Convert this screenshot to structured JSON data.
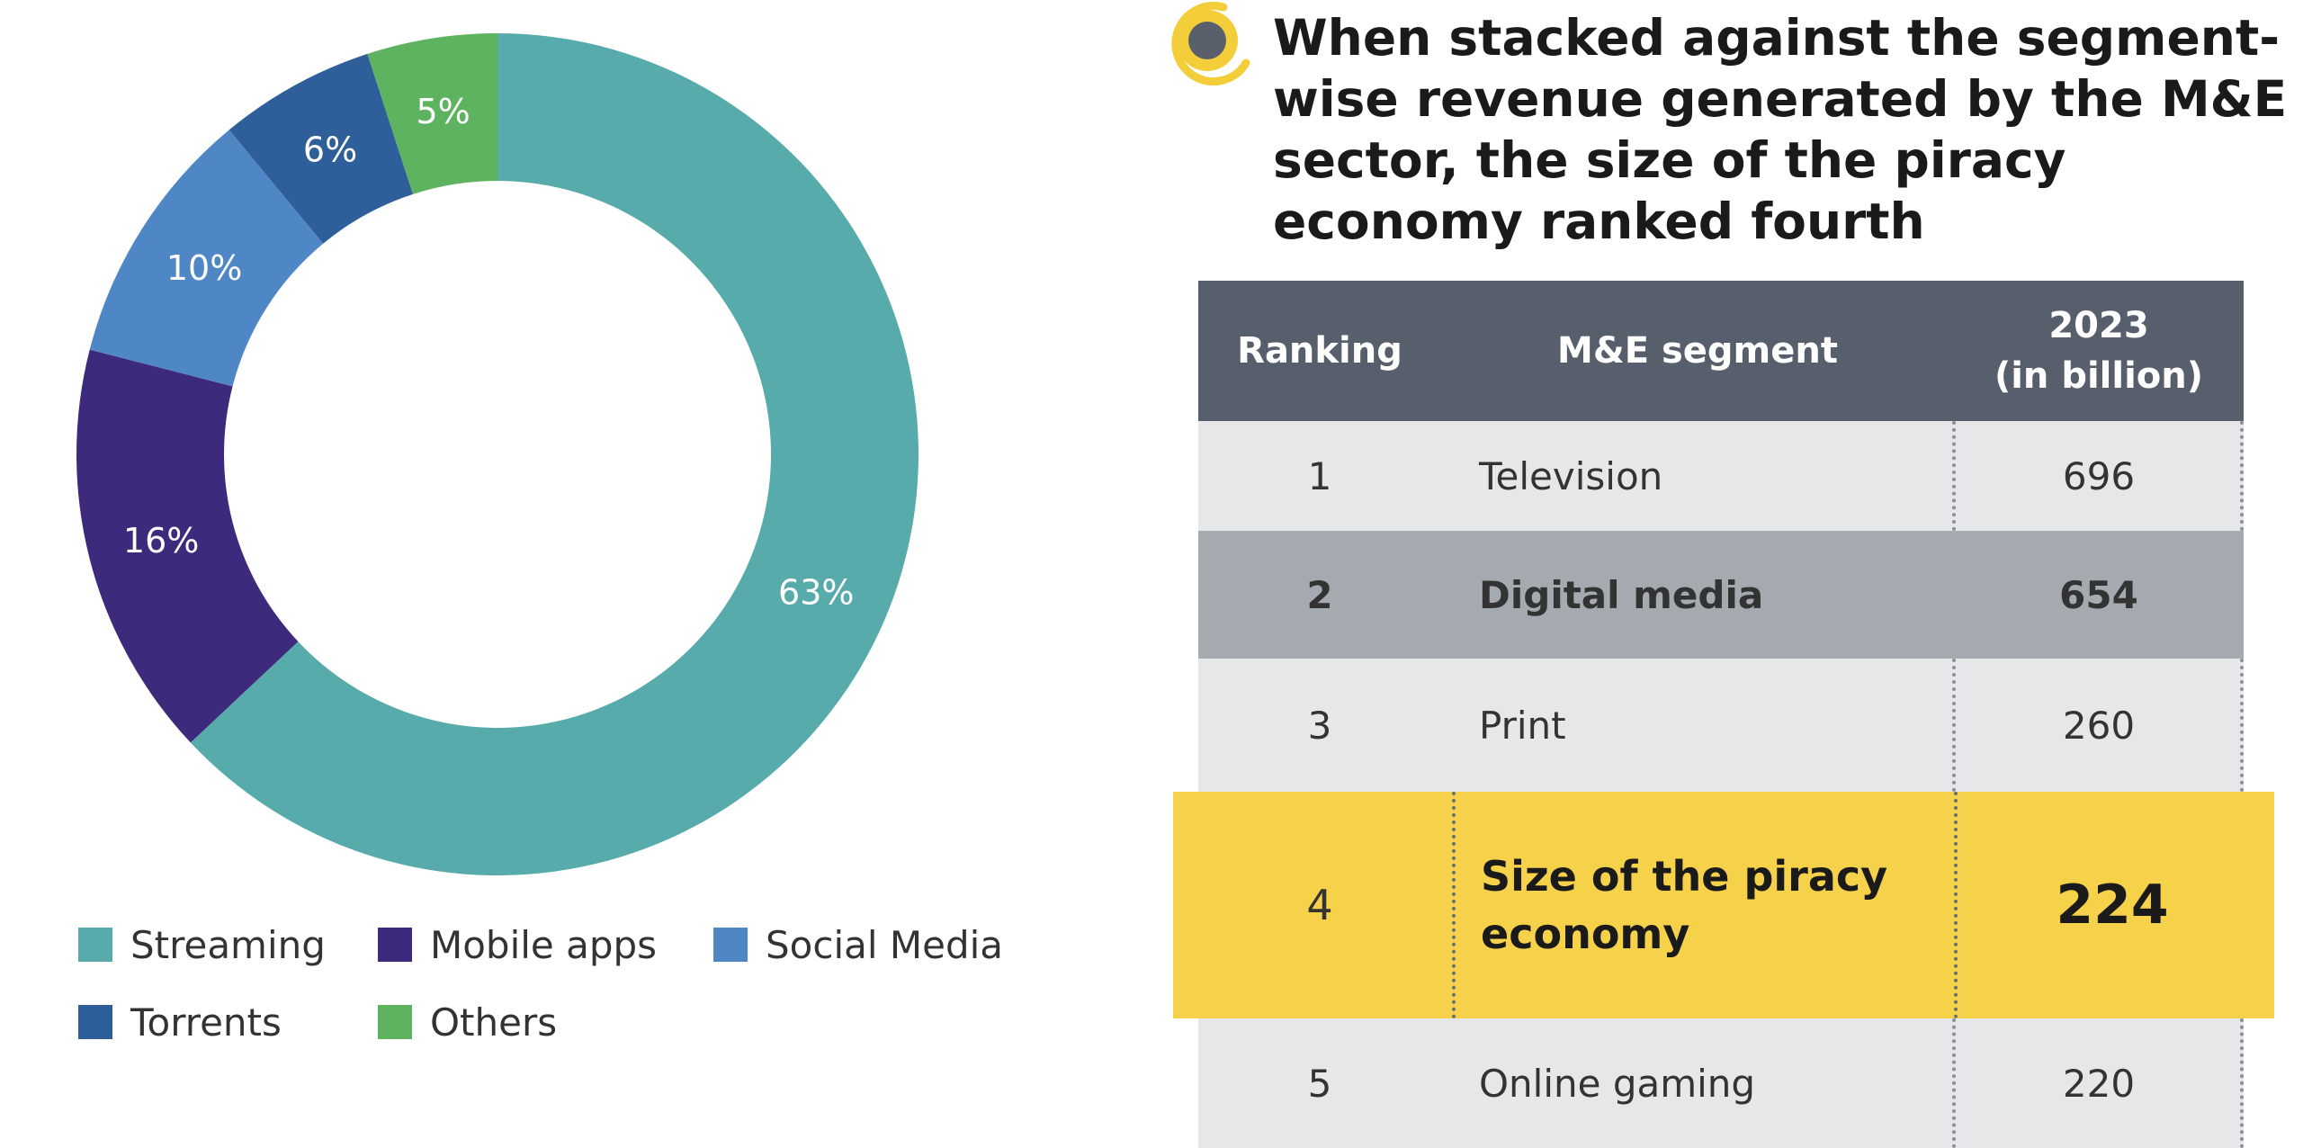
{
  "chart_data": {
    "type": "pie",
    "categories": [
      "Streaming",
      "Mobile apps",
      "Social Media",
      "Torrents",
      "Others"
    ],
    "values": [
      63,
      16,
      10,
      6,
      5
    ],
    "value_labels": [
      "63%",
      "16%",
      "10%",
      "6%",
      "5%"
    ],
    "colors": [
      "#57ABAB",
      "#3D2A7D",
      "#4F86C6",
      "#2F5F9A",
      "#5DB35F"
    ],
    "donut": true,
    "legend_placement": "bottom",
    "title": "",
    "unit": "%"
  },
  "legend": {
    "items": [
      {
        "label": "Streaming",
        "color": "#57ABAB"
      },
      {
        "label": "Mobile apps",
        "color": "#3D2A7D"
      },
      {
        "label": "Social Media",
        "color": "#4F86C6"
      },
      {
        "label": "Torrents",
        "color": "#2F5F9A"
      },
      {
        "label": "Others",
        "color": "#5DB35F"
      }
    ]
  },
  "heading": {
    "text": "When stacked against the segment-wise revenue generated by the M&E sector, the size of the piracy economy ranked fourth",
    "bullet_icon": "target-bullet-icon",
    "bullet_color": "#F4CE3A",
    "bullet_dot_color": "#5A606B"
  },
  "table": {
    "headers": {
      "rank": "Ranking",
      "segment": "M&E segment",
      "value_line1": "2023",
      "value_line2": "(in billion)"
    },
    "rows": [
      {
        "rank": "1",
        "segment": "Television",
        "value": "696"
      },
      {
        "rank": "2",
        "segment": "Digital media",
        "value": "654"
      },
      {
        "rank": "3",
        "segment": "Print",
        "value": "260"
      },
      {
        "rank": "4",
        "segment": "Size of the piracy economy",
        "value": "224"
      },
      {
        "rank": "5",
        "segment": "Online gaming",
        "value": "220"
      }
    ],
    "colors": {
      "header_bg": "#585F6C",
      "row_light": "#E6E7E9",
      "row_dark": "#A5AAB1",
      "highlight": "#F6D24A"
    }
  }
}
